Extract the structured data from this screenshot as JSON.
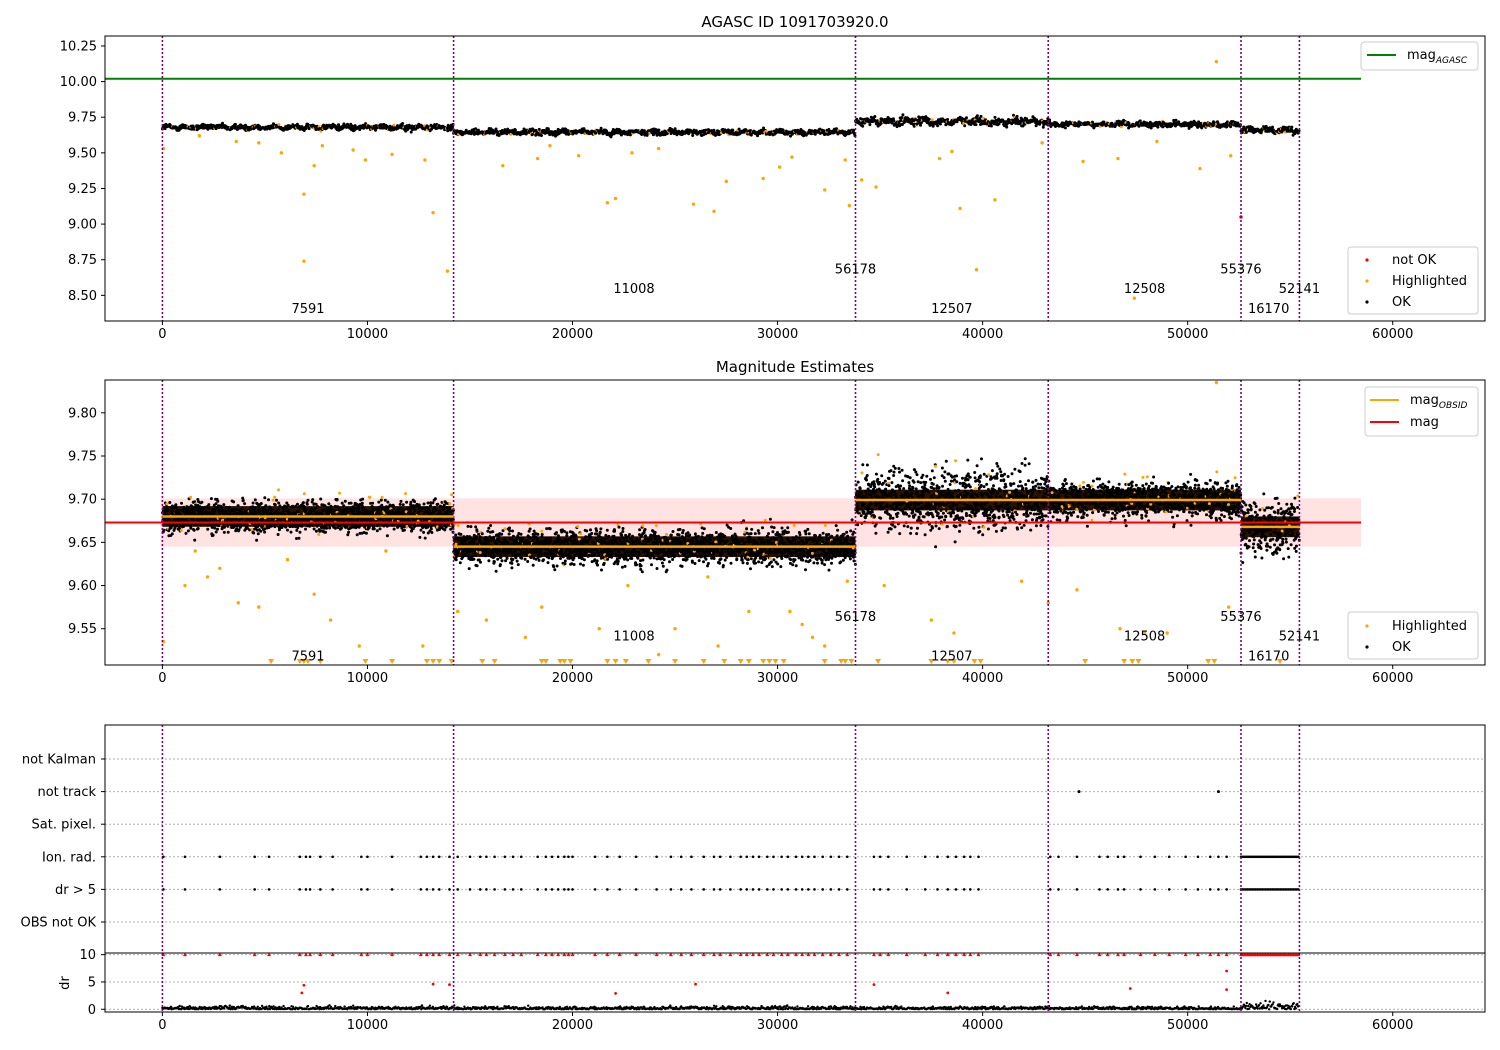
{
  "figure": {
    "title_top": "AGASC ID 1091703920.0",
    "title_mid": "Magnitude Estimates"
  },
  "colors": {
    "ok": "#000000",
    "highlighted": "#ffa500",
    "not_ok": "#ff0000",
    "mag_agasc": "#008000",
    "mag": "#ff0000",
    "obs_boundary": "#800080",
    "band": "#ffcccc"
  },
  "chart_data": [
    {
      "type": "scatter",
      "title": "AGASC ID 1091703920.0",
      "xlim": [
        -2800,
        64500
      ],
      "ylim": [
        8.32,
        10.32
      ],
      "xticks": [
        0,
        10000,
        20000,
        30000,
        40000,
        50000,
        60000
      ],
      "yticks": [
        "10.25",
        "10.00",
        "9.75",
        "9.50",
        "9.25",
        "9.00",
        "8.75",
        "8.50"
      ],
      "legend_upper": {
        "position": "top-right",
        "entries": [
          {
            "label": "mag",
            "sub": "AGASC"
          }
        ]
      },
      "legend_lower": {
        "position": "bottom-right",
        "entries": [
          "not OK",
          "Highlighted",
          "OK"
        ]
      },
      "mag_agasc": 10.02,
      "obs_boundaries": [
        0,
        14200,
        33800,
        43200,
        52600,
        55450
      ],
      "obsids": [
        {
          "label": "7591",
          "x": 7100,
          "y": 8.41
        },
        {
          "label": "11008",
          "x": 23000,
          "y": 8.55
        },
        {
          "label": "56178",
          "x": 33800,
          "y": 8.69
        },
        {
          "label": "12507",
          "x": 38500,
          "y": 8.41
        },
        {
          "label": "12508",
          "x": 47900,
          "y": 8.55
        },
        {
          "label": "55376",
          "x": 52600,
          "y": 8.69
        },
        {
          "label": "16170",
          "x": 53950,
          "y": 8.41
        },
        {
          "label": "52141",
          "x": 55450,
          "y": 8.55
        }
      ],
      "segments": [
        {
          "x": [
            0,
            14200
          ],
          "level": 9.68,
          "spread": 0.013
        },
        {
          "x": [
            14200,
            33800
          ],
          "level": 9.645,
          "spread": 0.013
        },
        {
          "x": [
            33800,
            43200
          ],
          "level": 9.72,
          "spread": 0.02
        },
        {
          "x": [
            43200,
            52600
          ],
          "level": 9.7,
          "spread": 0.013
        },
        {
          "x": [
            52600,
            55450
          ],
          "level": 9.66,
          "spread": 0.015
        }
      ],
      "highlighted_points": [
        [
          50,
          9.53
        ],
        [
          1800,
          9.62
        ],
        [
          3600,
          9.58
        ],
        [
          4700,
          9.57
        ],
        [
          5800,
          9.5
        ],
        [
          6900,
          9.21
        ],
        [
          6900,
          8.74
        ],
        [
          7400,
          9.41
        ],
        [
          7800,
          9.55
        ],
        [
          9300,
          9.52
        ],
        [
          9900,
          9.45
        ],
        [
          11200,
          9.49
        ],
        [
          12800,
          9.45
        ],
        [
          13200,
          9.08
        ],
        [
          13900,
          8.67
        ],
        [
          16600,
          9.41
        ],
        [
          18300,
          9.46
        ],
        [
          18900,
          9.55
        ],
        [
          20300,
          9.48
        ],
        [
          21700,
          9.15
        ],
        [
          22100,
          9.18
        ],
        [
          22900,
          9.5
        ],
        [
          24200,
          9.53
        ],
        [
          25900,
          9.14
        ],
        [
          26900,
          9.09
        ],
        [
          27500,
          9.3
        ],
        [
          29300,
          9.32
        ],
        [
          30100,
          9.4
        ],
        [
          30700,
          9.47
        ],
        [
          32300,
          9.24
        ],
        [
          33300,
          9.45
        ],
        [
          33500,
          9.13
        ],
        [
          34100,
          9.31
        ],
        [
          34800,
          9.26
        ],
        [
          37900,
          9.46
        ],
        [
          38500,
          9.51
        ],
        [
          38900,
          9.11
        ],
        [
          39700,
          8.68
        ],
        [
          40600,
          9.17
        ],
        [
          42900,
          9.57
        ],
        [
          44900,
          9.44
        ],
        [
          46600,
          9.46
        ],
        [
          47400,
          8.48
        ],
        [
          48500,
          9.58
        ],
        [
          50600,
          9.39
        ],
        [
          51400,
          10.14
        ],
        [
          52100,
          9.48
        ]
      ],
      "not_ok_points": [
        [
          52600,
          9.05
        ]
      ]
    },
    {
      "type": "scatter",
      "title": "Magnitude Estimates",
      "xlim": [
        -2800,
        64500
      ],
      "ylim": [
        9.508,
        9.838
      ],
      "xticks": [
        0,
        10000,
        20000,
        30000,
        40000,
        50000,
        60000
      ],
      "yticks": [
        "9.80",
        "9.75",
        "9.70",
        "9.65",
        "9.60",
        "9.55"
      ],
      "legend_upper": {
        "position": "top-right",
        "entries": [
          {
            "label": "mag",
            "sub": "OBSID"
          },
          {
            "label": "mag",
            "sub": ""
          }
        ]
      },
      "legend_lower": {
        "position": "bottom-right",
        "entries": [
          "Highlighted",
          "OK"
        ]
      },
      "mag": 9.673,
      "mag_band": [
        9.645,
        9.701
      ],
      "obs_boundaries": [
        0,
        14200,
        33800,
        43200,
        52600,
        55450
      ],
      "obsids": [
        {
          "label": "7591",
          "x": 7100,
          "y": 9.519
        },
        {
          "label": "11008",
          "x": 23000,
          "y": 9.542
        },
        {
          "label": "56178",
          "x": 33800,
          "y": 9.565
        },
        {
          "label": "12507",
          "x": 38500,
          "y": 9.519
        },
        {
          "label": "12508",
          "x": 47900,
          "y": 9.542
        },
        {
          "label": "55376",
          "x": 52600,
          "y": 9.565
        },
        {
          "label": "16170",
          "x": 53950,
          "y": 9.519
        },
        {
          "label": "52141",
          "x": 55450,
          "y": 9.542
        }
      ],
      "segments": [
        {
          "x": [
            0,
            14200
          ],
          "mag_obsid": 9.68,
          "lo": 9.655,
          "hi": 9.705
        },
        {
          "x": [
            14200,
            33800
          ],
          "mag_obsid": 9.645,
          "lo": 9.618,
          "hi": 9.672
        },
        {
          "x": [
            33800,
            43200
          ],
          "mag_obsid": 9.699,
          "lo": 9.655,
          "hi": 9.75
        },
        {
          "x": [
            43200,
            52600
          ],
          "mag_obsid": 9.699,
          "lo": 9.672,
          "hi": 9.728
        },
        {
          "x": [
            52600,
            55450
          ],
          "mag_obsid": 9.668,
          "lo": 9.625,
          "hi": 9.715
        }
      ],
      "highlighted_points": [
        [
          50,
          9.535
        ],
        [
          1100,
          9.6
        ],
        [
          1600,
          9.64
        ],
        [
          2200,
          9.61
        ],
        [
          2800,
          9.62
        ],
        [
          3700,
          9.58
        ],
        [
          4700,
          9.575
        ],
        [
          6100,
          9.63
        ],
        [
          7400,
          9.59
        ],
        [
          8200,
          9.56
        ],
        [
          9600,
          9.53
        ],
        [
          10900,
          9.64
        ],
        [
          12700,
          9.53
        ],
        [
          14400,
          9.57
        ],
        [
          15800,
          9.56
        ],
        [
          17700,
          9.54
        ],
        [
          18500,
          9.575
        ],
        [
          21300,
          9.55
        ],
        [
          22700,
          9.6
        ],
        [
          24200,
          9.52
        ],
        [
          25000,
          9.55
        ],
        [
          26600,
          9.61
        ],
        [
          27100,
          9.53
        ],
        [
          28600,
          9.57
        ],
        [
          30600,
          9.57
        ],
        [
          31200,
          9.555
        ],
        [
          31700,
          9.54
        ],
        [
          32300,
          9.53
        ],
        [
          33400,
          9.605
        ],
        [
          35200,
          9.6
        ],
        [
          37500,
          9.56
        ],
        [
          38600,
          9.545
        ],
        [
          41900,
          9.605
        ],
        [
          43200,
          9.58
        ],
        [
          44600,
          9.595
        ],
        [
          46700,
          9.55
        ],
        [
          47900,
          9.545
        ],
        [
          49000,
          9.545
        ],
        [
          52000,
          9.575
        ],
        [
          51400,
          9.835
        ]
      ],
      "lower_limit_markers": [
        5300,
        6700,
        6900,
        7100,
        7700,
        9900,
        11200,
        12900,
        13200,
        13500,
        14100,
        15600,
        16200,
        18500,
        18700,
        19400,
        19600,
        19900,
        21700,
        22100,
        22600,
        23700,
        25000,
        26400,
        27400,
        28200,
        28600,
        29300,
        29600,
        29900,
        30300,
        32300,
        33100,
        33300,
        33600,
        34900,
        37500,
        38300,
        38600,
        39600,
        39900,
        45000,
        46900,
        47300,
        47600,
        51000,
        51300,
        54500
      ]
    },
    {
      "type": "scatter",
      "title": "",
      "xlim": [
        -2800,
        64500
      ],
      "xticks": [
        0,
        10000,
        20000,
        30000,
        40000,
        50000,
        60000
      ],
      "flag_categories": [
        "not Kalman",
        "not track",
        "Sat. pixel.",
        "Ion. rad.",
        "dr > 5",
        "OBS not OK"
      ],
      "dr_ylabel": "dr",
      "dr_ylim": [
        -0.5,
        10.3
      ],
      "dr_yticks": [
        0,
        5,
        10
      ],
      "obs_boundaries": [
        0,
        14200,
        33800,
        43200,
        52600,
        55450
      ],
      "flagged_x": [
        50,
        1100,
        2800,
        4500,
        5200,
        6700,
        7000,
        7200,
        7700,
        8300,
        9700,
        10000,
        11200,
        12600,
        12900,
        13200,
        13500,
        14000,
        14400,
        15000,
        15500,
        15800,
        16200,
        16700,
        17100,
        17500,
        18300,
        18700,
        19000,
        19300,
        19600,
        19800,
        20000,
        21100,
        21700,
        22300,
        23100,
        24100,
        24800,
        25300,
        25800,
        26400,
        26900,
        27200,
        27700,
        28200,
        28500,
        28800,
        29100,
        29500,
        29800,
        30200,
        30500,
        30900,
        31200,
        31500,
        31800,
        32200,
        32600,
        33000,
        33400,
        34700,
        35000,
        35400,
        36300,
        37200,
        37800,
        38300,
        38700,
        39100,
        39400,
        39800,
        43300,
        43700,
        44600,
        45700,
        46100,
        46600,
        46900,
        47700,
        48400,
        49100,
        49900,
        50500,
        51100,
        51500,
        51900
      ],
      "not_track_x": [
        44700,
        51500
      ],
      "dr_high_points": [
        [
          6800,
          3.0
        ],
        [
          6900,
          4.4
        ],
        [
          13200,
          4.6
        ],
        [
          14000,
          4.5
        ],
        [
          22100,
          2.9
        ],
        [
          26000,
          4.6
        ],
        [
          34700,
          4.5
        ],
        [
          38300,
          3.0
        ],
        [
          47200,
          3.8
        ],
        [
          51900,
          7.0
        ],
        [
          51900,
          3.6
        ]
      ],
      "dr_typical": 0.35
    }
  ]
}
